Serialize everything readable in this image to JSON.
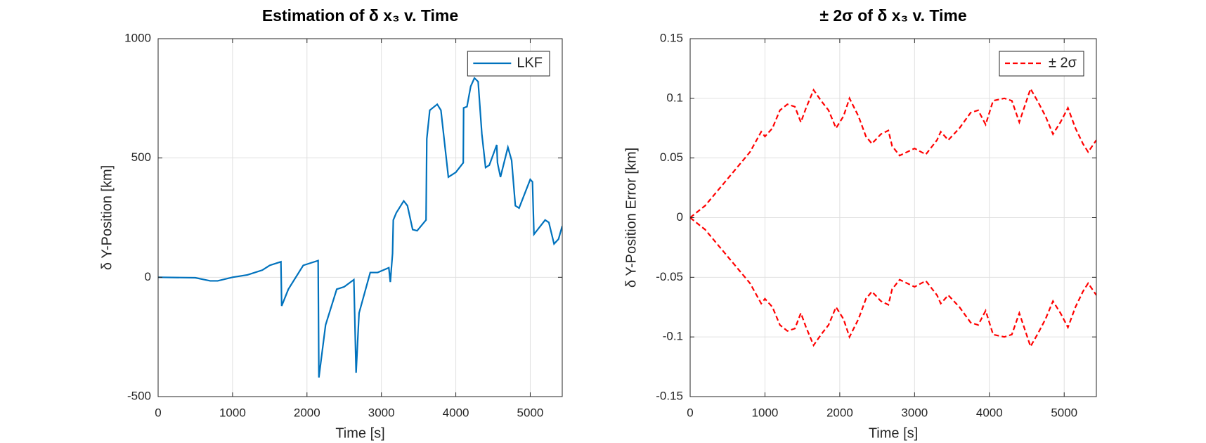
{
  "chart_data": [
    {
      "type": "line",
      "title": "Estimation of δ x₃ v. Time",
      "xlabel": "Time [s]",
      "ylabel": "δ Y-Position [km]",
      "xlim": [
        0,
        5430
      ],
      "ylim": [
        -500,
        1000
      ],
      "xticks": [
        0,
        1000,
        2000,
        3000,
        4000,
        5000
      ],
      "yticks": [
        -500,
        0,
        500,
        1000
      ],
      "grid": true,
      "legend": "northeast",
      "x": [
        0,
        500,
        700,
        800,
        1000,
        1200,
        1400,
        1500,
        1650,
        1660,
        1750,
        1950,
        2150,
        2160,
        2250,
        2400,
        2500,
        2630,
        2660,
        2700,
        2850,
        2950,
        3100,
        3120,
        3150,
        3160,
        3200,
        3300,
        3350,
        3420,
        3480,
        3600,
        3610,
        3650,
        3750,
        3800,
        3900,
        4000,
        4100,
        4105,
        4150,
        4200,
        4250,
        4300,
        4350,
        4400,
        4450,
        4550,
        4560,
        4600,
        4700,
        4750,
        4800,
        4850,
        5000,
        5030,
        5050,
        5200,
        5250,
        5320,
        5380,
        5430
      ],
      "series": [
        {
          "name": "LKF",
          "color": "#0072bd",
          "linestyle": "solid",
          "values": [
            0,
            -2,
            -15,
            -15,
            0,
            10,
            30,
            50,
            65,
            -120,
            -50,
            50,
            70,
            -420,
            -200,
            -50,
            -40,
            -10,
            -400,
            -150,
            20,
            20,
            40,
            -20,
            100,
            240,
            270,
            320,
            300,
            200,
            195,
            240,
            580,
            700,
            725,
            700,
            420,
            440,
            480,
            710,
            715,
            800,
            835,
            820,
            600,
            460,
            470,
            555,
            480,
            420,
            545,
            490,
            300,
            290,
            410,
            400,
            180,
            240,
            230,
            140,
            160,
            215
          ]
        }
      ]
    },
    {
      "type": "line",
      "title": "± 2σ of δ x₃ v. Time",
      "xlabel": "Time [s]",
      "ylabel": "δ Y-Position Error [km]",
      "xlim": [
        0,
        5430
      ],
      "ylim": [
        -0.15,
        0.15
      ],
      "xticks": [
        0,
        1000,
        2000,
        3000,
        4000,
        5000
      ],
      "yticks": [
        -0.15,
        -0.1,
        -0.05,
        0,
        0.05,
        0.1,
        0.15
      ],
      "grid": true,
      "legend": "northeast",
      "x": [
        0,
        200,
        400,
        600,
        800,
        950,
        1000,
        1100,
        1200,
        1300,
        1400,
        1480,
        1550,
        1650,
        1750,
        1850,
        1950,
        2050,
        2130,
        2250,
        2350,
        2430,
        2550,
        2650,
        2700,
        2800,
        2900,
        3000,
        3150,
        3300,
        3350,
        3450,
        3600,
        3750,
        3850,
        3950,
        4050,
        4200,
        4300,
        4400,
        4550,
        4650,
        4750,
        4850,
        4950,
        5050,
        5150,
        5250,
        5320,
        5430
      ],
      "series": [
        {
          "name": "± 2σ",
          "color": "#ff0000",
          "linestyle": "dashed",
          "values": [
            0,
            0.01,
            0.025,
            0.04,
            0.055,
            0.072,
            0.068,
            0.075,
            0.09,
            0.095,
            0.093,
            0.08,
            0.092,
            0.107,
            0.098,
            0.09,
            0.075,
            0.085,
            0.1,
            0.085,
            0.068,
            0.062,
            0.07,
            0.073,
            0.06,
            0.052,
            0.055,
            0.058,
            0.053,
            0.065,
            0.072,
            0.065,
            0.075,
            0.088,
            0.09,
            0.078,
            0.098,
            0.1,
            0.098,
            0.08,
            0.108,
            0.097,
            0.085,
            0.07,
            0.08,
            0.092,
            0.075,
            0.062,
            0.055,
            0.065
          ]
        },
        {
          "color": "#ff0000",
          "linestyle": "dashed",
          "values": [
            0,
            -0.01,
            -0.025,
            -0.04,
            -0.055,
            -0.072,
            -0.068,
            -0.075,
            -0.09,
            -0.095,
            -0.093,
            -0.08,
            -0.092,
            -0.107,
            -0.098,
            -0.09,
            -0.075,
            -0.085,
            -0.1,
            -0.085,
            -0.068,
            -0.062,
            -0.07,
            -0.073,
            -0.06,
            -0.052,
            -0.055,
            -0.058,
            -0.053,
            -0.065,
            -0.072,
            -0.065,
            -0.075,
            -0.088,
            -0.09,
            -0.078,
            -0.098,
            -0.1,
            -0.098,
            -0.08,
            -0.108,
            -0.097,
            -0.085,
            -0.07,
            -0.08,
            -0.092,
            -0.075,
            -0.062,
            -0.055,
            -0.065
          ]
        }
      ]
    }
  ]
}
